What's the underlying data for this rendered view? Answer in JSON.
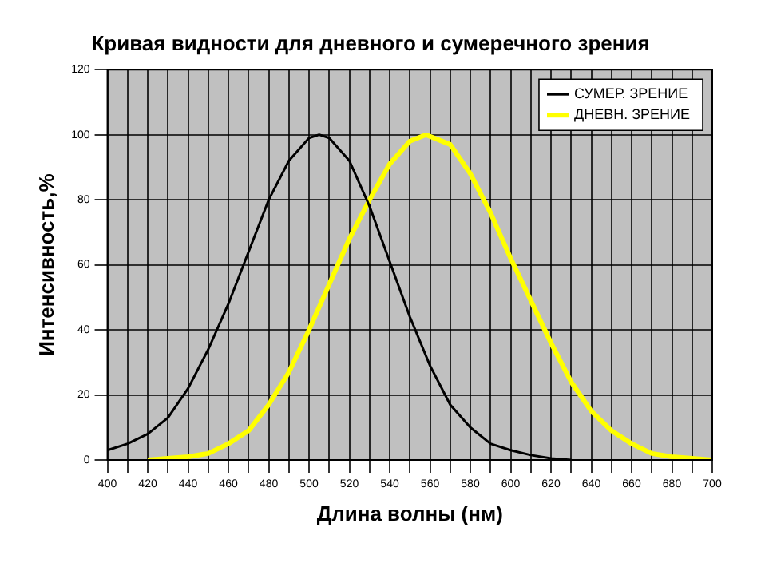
{
  "chart_data": {
    "type": "line",
    "title": "Кривая видности для дневного и сумеречного зрения",
    "xlabel": "Длина волны (нм)",
    "ylabel": "Интенсивность,%",
    "xlim": [
      400,
      700
    ],
    "xticks": [
      400,
      {
        "value": 410,
        "label": null
      },
      420,
      {
        "value": 430,
        "label": null
      },
      440,
      {
        "value": 450,
        "label": null
      },
      460,
      {
        "value": 470,
        "label": null
      },
      480,
      {
        "value": 490,
        "label": null
      },
      500,
      {
        "value": 510,
        "label": null
      },
      520,
      {
        "value": 530,
        "label": null
      },
      540,
      {
        "value": 550,
        "label": null
      },
      560,
      {
        "value": 570,
        "label": null
      },
      580,
      {
        "value": 590,
        "label": null
      },
      600,
      {
        "value": 610,
        "label": null
      },
      620,
      {
        "value": 630,
        "label": null
      },
      640,
      {
        "value": 650,
        "label": null
      },
      660,
      {
        "value": 670,
        "label": null
      },
      680,
      {
        "value": 690,
        "label": null
      },
      700
    ],
    "ylim": [
      0,
      120
    ],
    "yticks": [
      0,
      20,
      40,
      60,
      80,
      100,
      120
    ],
    "grid": true,
    "legend": "top right",
    "marker": "none",
    "series": [
      {
        "name": "СУМЕР. ЗРЕНИЕ",
        "color": "#000000",
        "x": [
          400,
          410,
          420,
          430,
          440,
          450,
          460,
          470,
          480,
          490,
          500,
          505,
          510,
          520,
          530,
          540,
          550,
          560,
          570,
          580,
          590,
          600,
          610,
          620,
          630
        ],
        "values": [
          3,
          5,
          8,
          13,
          22,
          34,
          48,
          64,
          80,
          92,
          99,
          100,
          99,
          92,
          78,
          61,
          44,
          29,
          17,
          10,
          5,
          3,
          1.5,
          0.5,
          0
        ]
      },
      {
        "name": "ДНЕВН. ЗРЕНИЕ",
        "color": "#ffff00",
        "x": [
          420,
          430,
          440,
          450,
          460,
          470,
          480,
          490,
          500,
          510,
          520,
          530,
          540,
          550,
          558,
          570,
          580,
          590,
          600,
          610,
          620,
          630,
          640,
          650,
          660,
          670,
          680,
          690,
          700
        ],
        "values": [
          0,
          0.5,
          1,
          2,
          5,
          9,
          17,
          27,
          40,
          54,
          68,
          80,
          91,
          98,
          100,
          97,
          88,
          76,
          62,
          49,
          36,
          24,
          15,
          9,
          5,
          2,
          1,
          0.5,
          0
        ]
      }
    ]
  }
}
